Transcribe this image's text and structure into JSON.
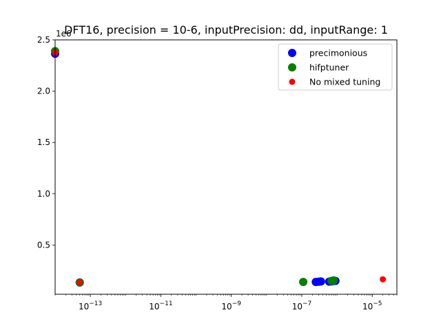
{
  "chart_data": {
    "type": "scatter",
    "title": "DFT16, precision = 10-6, inputPrecision: dd, inputRange: 1",
    "xlabel": "",
    "ylabel": "",
    "xscale": "log",
    "xlim": [
      1e-14,
      5e-05
    ],
    "ylim": [
      20000,
      2500000
    ],
    "y_offset_label": "1e6",
    "xticks": [
      {
        "value": 1e-13,
        "base": "10",
        "exp": "−13"
      },
      {
        "value": 1e-11,
        "base": "10",
        "exp": "−11"
      },
      {
        "value": 1e-09,
        "base": "10",
        "exp": "−9"
      },
      {
        "value": 1e-07,
        "base": "10",
        "exp": "−7"
      },
      {
        "value": 1e-05,
        "base": "10",
        "exp": "−5"
      }
    ],
    "yticks": [
      {
        "value": 500000,
        "label": "0.5"
      },
      {
        "value": 1000000,
        "label": "1.0"
      },
      {
        "value": 1500000,
        "label": "1.5"
      },
      {
        "value": 2000000,
        "label": "2.0"
      },
      {
        "value": 2500000,
        "label": "2.5"
      }
    ],
    "legend_position": "top-right",
    "series": [
      {
        "name": "precimonious",
        "color": "#0000ff",
        "marker_size": "large",
        "points": [
          {
            "x": 1e-14,
            "y": 2365000
          },
          {
            "x": 5e-14,
            "y": 135000
          },
          {
            "x": 2.5e-07,
            "y": 140000
          },
          {
            "x": 3e-07,
            "y": 142000
          },
          {
            "x": 3.5e-07,
            "y": 145000
          },
          {
            "x": 6e-07,
            "y": 143000
          },
          {
            "x": 7e-07,
            "y": 145000
          },
          {
            "x": 8e-07,
            "y": 150000
          },
          {
            "x": 9e-07,
            "y": 150000
          }
        ]
      },
      {
        "name": "hifptuner",
        "color": "#008000",
        "marker_size": "large",
        "points": [
          {
            "x": 1e-14,
            "y": 2390000
          },
          {
            "x": 5e-14,
            "y": 135000
          },
          {
            "x": 1.1e-07,
            "y": 140000
          },
          {
            "x": 7e-07,
            "y": 150000
          },
          {
            "x": 8e-07,
            "y": 155000
          }
        ]
      },
      {
        "name": "No mixed tuning",
        "color": "#ff0000",
        "marker_size": "small",
        "points": [
          {
            "x": 1e-14,
            "y": 2375000
          },
          {
            "x": 5e-14,
            "y": 135000
          },
          {
            "x": 2e-05,
            "y": 165000
          }
        ]
      }
    ]
  }
}
